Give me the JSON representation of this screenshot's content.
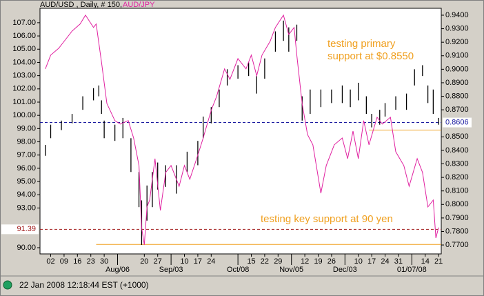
{
  "chart_data": {
    "type": "hilo",
    "header": {
      "symbol": "AUD/USD , Daily, # 150,",
      "overlay": "AUD/JPY"
    },
    "annotations": [
      "testing primary",
      "support at $0.8550",
      "testing key support at 90 yen"
    ],
    "status": "22 Jan 2008 12:18:44  EST (+1000)",
    "xlim": [
      0,
      150
    ],
    "xticks": [
      {
        "value": 4,
        "label": "02"
      },
      {
        "value": 9,
        "label": "09"
      },
      {
        "value": 14,
        "label": "16"
      },
      {
        "value": 19,
        "label": "23"
      },
      {
        "value": 24,
        "label": "30"
      },
      {
        "value": 39,
        "label": "20"
      },
      {
        "value": 44,
        "label": "27"
      },
      {
        "value": 54,
        "label": "10"
      },
      {
        "value": 59,
        "label": "17"
      },
      {
        "value": 64,
        "label": "24"
      },
      {
        "value": 79,
        "label": "15"
      },
      {
        "value": 84,
        "label": "22"
      },
      {
        "value": 89,
        "label": "29"
      },
      {
        "value": 99,
        "label": "12"
      },
      {
        "value": 104,
        "label": "19"
      },
      {
        "value": 109,
        "label": "26"
      },
      {
        "value": 119,
        "label": "10"
      },
      {
        "value": 124,
        "label": "17"
      },
      {
        "value": 129,
        "label": "24"
      },
      {
        "value": 134,
        "label": "31"
      },
      {
        "value": 144,
        "label": "14"
      },
      {
        "value": 149,
        "label": "21"
      }
    ],
    "xticks_major": [
      {
        "value": 29,
        "label": "Aug/06"
      },
      {
        "value": 49,
        "label": "Sep/03"
      },
      {
        "value": 74,
        "label": "Oct/08"
      },
      {
        "value": 94,
        "label": "Nov/05"
      },
      {
        "value": 114,
        "label": "Dec/03"
      },
      {
        "value": 139,
        "label": "01/07/08"
      }
    ],
    "ylim": [
      89.53,
      108.09
    ],
    "yticks": [
      {
        "value": 90,
        "label": "90.00"
      },
      {
        "value": 93,
        "label": "93.00"
      },
      {
        "value": 94,
        "label": "94.00"
      },
      {
        "value": 95,
        "label": "95.00"
      },
      {
        "value": 96,
        "label": "96.00"
      },
      {
        "value": 97,
        "label": "97.00"
      },
      {
        "value": 98,
        "label": "98.00"
      },
      {
        "value": 99,
        "label": "99.00"
      },
      {
        "value": 100,
        "label": "100.00"
      },
      {
        "value": 101,
        "label": "101.00"
      },
      {
        "value": 102,
        "label": "102.00"
      },
      {
        "value": 103,
        "label": "103.00"
      },
      {
        "value": 104,
        "label": "104.00"
      },
      {
        "value": 105,
        "label": "105.00"
      },
      {
        "value": 106,
        "label": "106.00"
      },
      {
        "value": 107,
        "label": "107.00"
      }
    ],
    "y2lim": [
      0.7634,
      0.9451
    ],
    "y2ticks": [
      {
        "value": 0.77,
        "label": "0.7700"
      },
      {
        "value": 0.78,
        "label": "0.7800"
      },
      {
        "value": 0.79,
        "label": "0.7900"
      },
      {
        "value": 0.8,
        "label": "0.8000"
      },
      {
        "value": 0.81,
        "label": "0.8100"
      },
      {
        "value": 0.82,
        "label": "0.8200"
      },
      {
        "value": 0.83,
        "label": "0.8300"
      },
      {
        "value": 0.84,
        "label": "0.8400"
      },
      {
        "value": 0.85,
        "label": "0.8500"
      },
      {
        "value": 0.87,
        "label": "0.8700"
      },
      {
        "value": 0.88,
        "label": "0.8800"
      },
      {
        "value": 0.89,
        "label": "0.8900"
      },
      {
        "value": 0.9,
        "label": "0.9000"
      },
      {
        "value": 0.91,
        "label": "0.9100"
      },
      {
        "value": 0.92,
        "label": "0.9200"
      },
      {
        "value": 0.93,
        "label": "0.9300"
      },
      {
        "value": 0.94,
        "label": "0.9400"
      }
    ],
    "ref_lines": [
      {
        "axis": "y2",
        "value": 0.8606,
        "label": "0.8606",
        "color": "#1a1aa0",
        "dashed": true
      },
      {
        "axis": "y",
        "value": 91.39,
        "label": "91.39",
        "color": "#a01818",
        "dashed": true
      },
      {
        "axis": "y2",
        "value": 0.855,
        "from": 123,
        "color": "#f0a020",
        "dashed": false
      },
      {
        "axis": "y",
        "value": 90.25,
        "from": 21,
        "color": "#f0a020",
        "dashed": false
      }
    ],
    "bars": {
      "name": "AUD/USD",
      "axis": "y2",
      "color": "#000000",
      "x": [
        2,
        4,
        8,
        12,
        16,
        20,
        22,
        23,
        24,
        28,
        31,
        34,
        37,
        38,
        40,
        42,
        44,
        47,
        51,
        55,
        59,
        61,
        64,
        67,
        70,
        74,
        78,
        81,
        84,
        88,
        91,
        93,
        96,
        98,
        101,
        105,
        109,
        113,
        116,
        119,
        122,
        124,
        127,
        129,
        133,
        137,
        140,
        143,
        145,
        147,
        149
      ],
      "high": [
        0.844,
        0.859,
        0.862,
        0.867,
        0.88,
        0.886,
        0.888,
        0.877,
        0.862,
        0.859,
        0.864,
        0.849,
        0.824,
        0.803,
        0.814,
        0.824,
        0.831,
        0.829,
        0.829,
        0.839,
        0.847,
        0.865,
        0.872,
        0.885,
        0.9,
        0.903,
        0.905,
        0.895,
        0.908,
        0.928,
        0.936,
        0.931,
        0.933,
        0.88,
        0.885,
        0.885,
        0.885,
        0.888,
        0.885,
        0.89,
        0.88,
        0.867,
        0.87,
        0.875,
        0.88,
        0.882,
        0.9,
        0.903,
        0.888,
        0.885,
        0.864
      ],
      "low": [
        0.836,
        0.849,
        0.855,
        0.86,
        0.87,
        0.877,
        0.88,
        0.867,
        0.849,
        0.847,
        0.849,
        0.824,
        0.798,
        0.77,
        0.788,
        0.798,
        0.811,
        0.813,
        0.808,
        0.824,
        0.829,
        0.849,
        0.86,
        0.872,
        0.888,
        0.893,
        0.895,
        0.882,
        0.893,
        0.913,
        0.921,
        0.913,
        0.921,
        0.862,
        0.867,
        0.872,
        0.875,
        0.875,
        0.872,
        0.877,
        0.867,
        0.857,
        0.859,
        0.865,
        0.87,
        0.87,
        0.888,
        0.895,
        0.875,
        0.867,
        0.859
      ]
    },
    "line": {
      "name": "AUD/JPY",
      "axis": "y",
      "color": "#e020a0",
      "x": [
        2,
        4,
        7,
        10,
        12,
        15,
        17,
        20,
        21,
        23,
        25,
        28,
        30,
        33,
        35,
        37,
        38,
        39,
        40,
        41,
        43,
        45,
        47,
        49,
        52,
        54,
        56,
        59,
        61,
        64,
        66,
        69,
        71,
        74,
        77,
        79,
        81,
        83,
        86,
        88,
        91,
        93,
        95,
        96,
        98,
        100,
        102,
        105,
        107,
        110,
        113,
        115,
        117,
        119,
        121,
        123,
        126,
        128,
        131,
        133,
        136,
        138,
        141,
        143,
        145,
        147,
        148,
        149
      ],
      "values": [
        103.51,
        104.55,
        105.07,
        105.85,
        106.37,
        106.9,
        107.57,
        106.64,
        106.9,
        104.03,
        100.9,
        99.6,
        99.34,
        99.6,
        98.29,
        96.21,
        91.52,
        90.22,
        93.08,
        93.6,
        96.73,
        92.82,
        95.69,
        96.21,
        94.64,
        96.21,
        95.17,
        96.99,
        98.29,
        100.38,
        101.42,
        103.51,
        102.72,
        104.29,
        103.51,
        104.55,
        102.99,
        104.55,
        105.59,
        106.64,
        107.57,
        106.11,
        106.64,
        104.55,
        100.9,
        98.55,
        97.77,
        94.12,
        96.21,
        97.77,
        98.29,
        96.73,
        98.81,
        96.73,
        99.6,
        97.77,
        99.86,
        99.34,
        99.86,
        97.25,
        96.21,
        94.64,
        96.73,
        95.69,
        93.08,
        93.6,
        90.73,
        91.52
      ]
    }
  }
}
